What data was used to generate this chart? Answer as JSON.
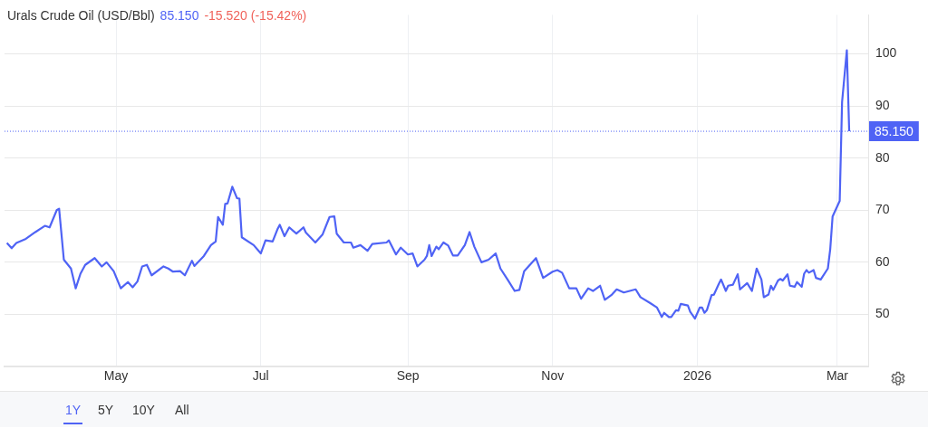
{
  "chart_data": {
    "type": "line",
    "title": "Urals Crude Oil (USD/Bbl)",
    "annotations": [
      "85.150",
      "-15.520 (-15.42%)",
      "1Y",
      "5Y",
      "10Y",
      "All"
    ],
    "x": [
      "2025-03-16",
      "2025-03-18",
      "2025-03-20",
      "2025-03-24",
      "2025-03-28",
      "2025-04-01",
      "2025-04-03",
      "2025-04-06",
      "2025-04-07",
      "2025-04-09",
      "2025-04-12",
      "2025-04-14",
      "2025-04-16",
      "2025-04-18",
      "2025-04-22",
      "2025-04-25",
      "2025-04-27",
      "2025-04-30",
      "2025-05-03",
      "2025-05-06",
      "2025-05-08",
      "2025-05-10",
      "2025-05-12",
      "2025-05-14",
      "2025-05-16",
      "2025-05-21",
      "2025-05-23",
      "2025-05-25",
      "2025-05-28",
      "2025-05-30",
      "2025-06-02",
      "2025-06-03",
      "2025-06-07",
      "2025-06-10",
      "2025-06-12",
      "2025-06-13",
      "2025-06-15",
      "2025-06-16",
      "2025-06-17",
      "2025-06-19",
      "2025-06-21",
      "2025-06-22",
      "2025-06-23",
      "2025-06-28",
      "2025-07-01",
      "2025-07-03",
      "2025-07-06",
      "2025-07-08",
      "2025-07-09",
      "2025-07-11",
      "2025-07-13",
      "2025-07-16",
      "2025-07-19",
      "2025-07-20",
      "2025-07-24",
      "2025-07-27",
      "2025-07-30",
      "2025-08-01",
      "2025-08-02",
      "2025-08-05",
      "2025-08-08",
      "2025-08-09",
      "2025-08-12",
      "2025-08-15",
      "2025-08-17",
      "2025-08-23",
      "2025-08-24",
      "2025-08-27",
      "2025-08-29",
      "2025-09-01",
      "2025-09-03",
      "2025-09-05",
      "2025-09-08",
      "2025-09-09",
      "2025-09-10",
      "2025-09-11",
      "2025-09-13",
      "2025-09-14",
      "2025-09-16",
      "2025-09-18",
      "2025-09-20",
      "2025-09-22",
      "2025-09-25",
      "2025-09-27",
      "2025-09-29",
      "2025-10-02",
      "2025-10-05",
      "2025-10-08",
      "2025-10-10",
      "2025-10-13",
      "2025-10-16",
      "2025-10-18",
      "2025-10-20",
      "2025-10-25",
      "2025-10-28",
      "2025-11-01",
      "2025-11-03",
      "2025-11-05",
      "2025-11-08",
      "2025-11-11",
      "2025-11-13",
      "2025-11-16",
      "2025-11-18",
      "2025-11-21",
      "2025-11-23",
      "2025-11-26",
      "2025-11-28",
      "2025-12-01",
      "2025-12-06",
      "2025-12-08",
      "2025-12-12",
      "2025-12-15",
      "2025-12-17",
      "2025-12-18",
      "2025-12-20",
      "2025-12-21",
      "2025-12-23",
      "2025-12-24",
      "2025-12-25",
      "2025-12-28",
      "2025-12-29",
      "2025-12-31",
      "2026-01-02",
      "2026-01-03",
      "2026-01-04",
      "2026-01-05",
      "2026-01-07",
      "2026-01-08",
      "2026-01-10",
      "2026-01-11",
      "2026-01-13",
      "2026-01-14",
      "2026-01-16",
      "2026-01-18",
      "2026-01-19",
      "2026-01-22",
      "2026-01-24",
      "2026-01-26",
      "2026-01-28",
      "2026-01-29",
      "2026-01-31",
      "2026-02-01",
      "2026-02-02",
      "2026-02-04",
      "2026-02-05",
      "2026-02-06",
      "2026-02-08",
      "2026-02-09",
      "2026-02-11",
      "2026-02-12",
      "2026-02-14",
      "2026-02-15",
      "2026-02-16",
      "2026-02-17",
      "2026-02-19",
      "2026-02-20",
      "2026-02-22",
      "2026-02-25",
      "2026-02-26",
      "2026-02-27",
      "2026-03-02",
      "2026-03-03",
      "2026-03-05",
      "2026-03-06"
    ],
    "series": [
      {
        "color": "#4f63f5",
        "values": [
          63.7,
          62.7,
          63.7,
          64.5,
          65.8,
          67,
          66.7,
          70,
          70.3,
          60.5,
          58.8,
          55,
          57.8,
          59.5,
          60.8,
          59.2,
          60,
          58.3,
          55,
          56.2,
          55.2,
          56.3,
          59.2,
          59.5,
          57.5,
          59.2,
          58.8,
          58.2,
          58.3,
          57.5,
          60.3,
          59.3,
          61.2,
          63.3,
          64,
          68.7,
          67.2,
          71.2,
          71.3,
          74.5,
          72.3,
          72.2,
          64.8,
          63.3,
          61.7,
          64.2,
          64,
          66.3,
          67.2,
          65,
          66.7,
          65.5,
          66.7,
          65.7,
          63.8,
          65.3,
          68.7,
          68.8,
          65.5,
          63.8,
          63.8,
          62.8,
          63.3,
          62.2,
          63.5,
          63.8,
          64.2,
          61.5,
          62.8,
          61.5,
          61.7,
          59.2,
          60.5,
          61.2,
          63.3,
          61.2,
          63,
          62.5,
          63.8,
          63.2,
          61.3,
          61.3,
          63.3,
          65.8,
          63,
          60,
          60.5,
          61.7,
          58.8,
          56.7,
          54.5,
          54.7,
          58.3,
          60.8,
          57,
          58.2,
          58.5,
          58,
          55,
          55,
          53,
          55,
          54.5,
          55.5,
          52.8,
          53.8,
          54.8,
          54.2,
          54.8,
          53.3,
          52.2,
          51.3,
          49.5,
          50.3,
          49.5,
          49.5,
          50.8,
          50.7,
          52,
          51.7,
          50.5,
          49.2,
          51.3,
          51.3,
          50.3,
          50.8,
          53.7,
          53.8,
          55.8,
          56.7,
          54.5,
          55.5,
          55.7,
          57.7,
          54.8,
          56,
          54.5,
          58.8,
          56.7,
          53.3,
          53.8,
          55.5,
          54.7,
          56.5,
          56.8,
          56.5,
          57.7,
          55.5,
          55.3,
          56.2,
          55.3,
          57.8,
          58.5,
          58,
          58.5,
          57,
          56.7,
          58.8,
          62.5,
          68.8,
          71.8,
          90.8,
          100.7,
          85.15
        ]
      }
    ],
    "xlim": [
      "2025-03-15",
      "2026-03-14"
    ],
    "xticks": [
      {
        "value": "2025-05-01",
        "label": "May"
      },
      {
        "value": "2025-07-01",
        "label": "Jul"
      },
      {
        "value": "2025-09-01",
        "label": "Sep"
      },
      {
        "value": "2025-11-01",
        "label": "Nov"
      },
      {
        "value": "2026-01-01",
        "label": "2026"
      },
      {
        "value": "2026-03-01",
        "label": "Mar"
      }
    ],
    "ylim": [
      40,
      107.5
    ],
    "yticks": [
      50,
      60,
      70,
      80,
      90,
      100
    ],
    "ref_lines": [
      {
        "axis": "y",
        "value": 85.15,
        "label": "85.150",
        "color": "#4f63f5",
        "line_style": "dotted"
      }
    ],
    "grid": true,
    "legend": false,
    "marker": "none",
    "line_style": "solid"
  }
}
